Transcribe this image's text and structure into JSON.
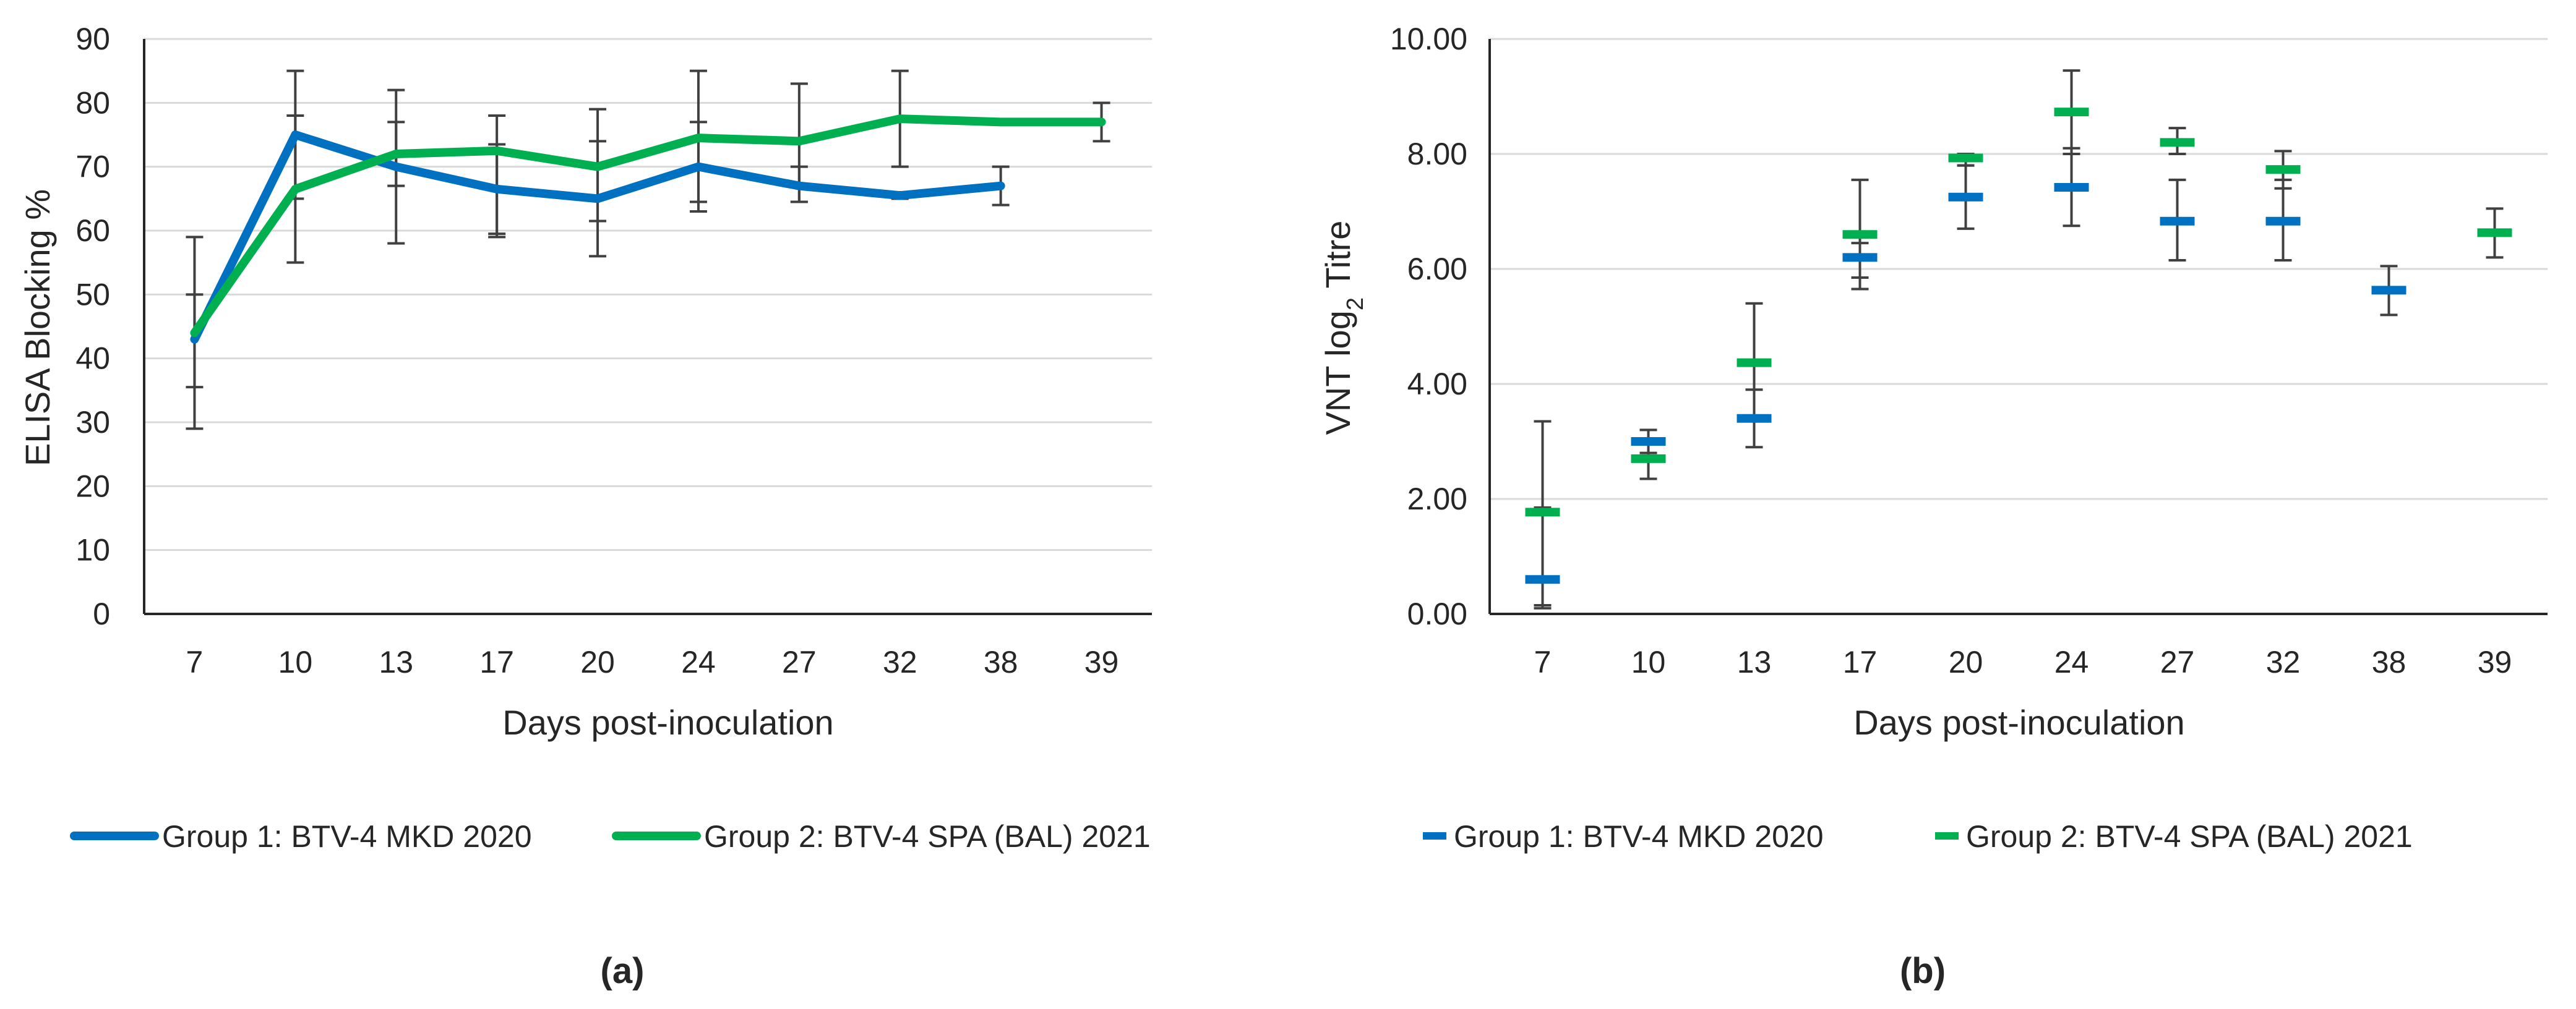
{
  "colors": {
    "group1": "#0070C0",
    "group2": "#00B050",
    "grid": "#d9d9d9",
    "axis": "#262626",
    "error": "#404040"
  },
  "chart_data": [
    {
      "panel": "(a)",
      "type": "line",
      "categories": [
        "7",
        "10",
        "13",
        "17",
        "20",
        "24",
        "27",
        "32",
        "38",
        "39"
      ],
      "xlabel": "Days post-inoculation",
      "ylabel": "ELISA Blocking %",
      "ylim": [
        0,
        90
      ],
      "yticks": [
        "0",
        "10",
        "20",
        "30",
        "40",
        "50",
        "60",
        "70",
        "80",
        "90"
      ],
      "grid": true,
      "legend": "bottom",
      "series": [
        {
          "name": "Group 1: BTV-4 MKD 2020",
          "color": "#0070C0",
          "values": [
            43,
            75,
            70,
            66.5,
            65,
            70,
            67,
            65.5,
            67,
            null
          ],
          "err_low": [
            35.5,
            65,
            58,
            59.5,
            56,
            63,
            64.5,
            65,
            64,
            null
          ],
          "err_high": [
            50,
            85,
            82,
            73.5,
            74,
            77,
            70,
            66,
            70,
            null
          ]
        },
        {
          "name": "Group 2: BTV-4 SPA (BAL) 2021",
          "color": "#00B050",
          "values": [
            44,
            66.5,
            72,
            72.5,
            70,
            74.5,
            74,
            77.5,
            77,
            77
          ],
          "err_low": [
            29,
            55,
            67,
            59,
            61.5,
            64.5,
            64.5,
            70,
            null,
            74
          ],
          "err_high": [
            59,
            78,
            77,
            78,
            79,
            85,
            83,
            85,
            null,
            80
          ]
        }
      ]
    },
    {
      "panel": "(b)",
      "type": "scatter",
      "categories": [
        "7",
        "10",
        "13",
        "17",
        "20",
        "24",
        "27",
        "32",
        "38",
        "39"
      ],
      "xlabel": "Days post-inoculation",
      "ylabel_main": "VNT log",
      "ylabel_sub": "2",
      "ylabel_tail": " Titre",
      "ylim": [
        0,
        10
      ],
      "yticks": [
        "0.00",
        "2.00",
        "4.00",
        "6.00",
        "8.00",
        "10.00"
      ],
      "grid": true,
      "legend": "bottom",
      "series": [
        {
          "name": "Group 1: BTV-4 MKD 2020",
          "color": "#0070C0",
          "values": [
            0.6,
            3.0,
            3.4,
            6.2,
            7.25,
            7.42,
            6.83,
            6.83,
            5.63,
            null
          ],
          "err_low": [
            0.15,
            2.8,
            2.9,
            5.85,
            6.7,
            6.75,
            6.15,
            6.15,
            5.2,
            null
          ],
          "err_high": [
            1.85,
            3.2,
            3.9,
            6.45,
            7.8,
            8.1,
            7.55,
            7.55,
            6.05,
            null
          ]
        },
        {
          "name": "Group 2: BTV-4 SPA (BAL) 2021",
          "color": "#00B050",
          "values": [
            1.77,
            2.7,
            4.37,
            6.6,
            7.93,
            8.73,
            8.2,
            7.73,
            null,
            6.63
          ],
          "err_low": [
            0.1,
            2.35,
            3.4,
            5.65,
            7.8,
            8.0,
            8.0,
            7.4,
            null,
            6.2
          ],
          "err_high": [
            3.35,
            3.05,
            5.4,
            7.55,
            8.0,
            9.45,
            8.45,
            8.05,
            null,
            7.05
          ]
        }
      ]
    }
  ]
}
